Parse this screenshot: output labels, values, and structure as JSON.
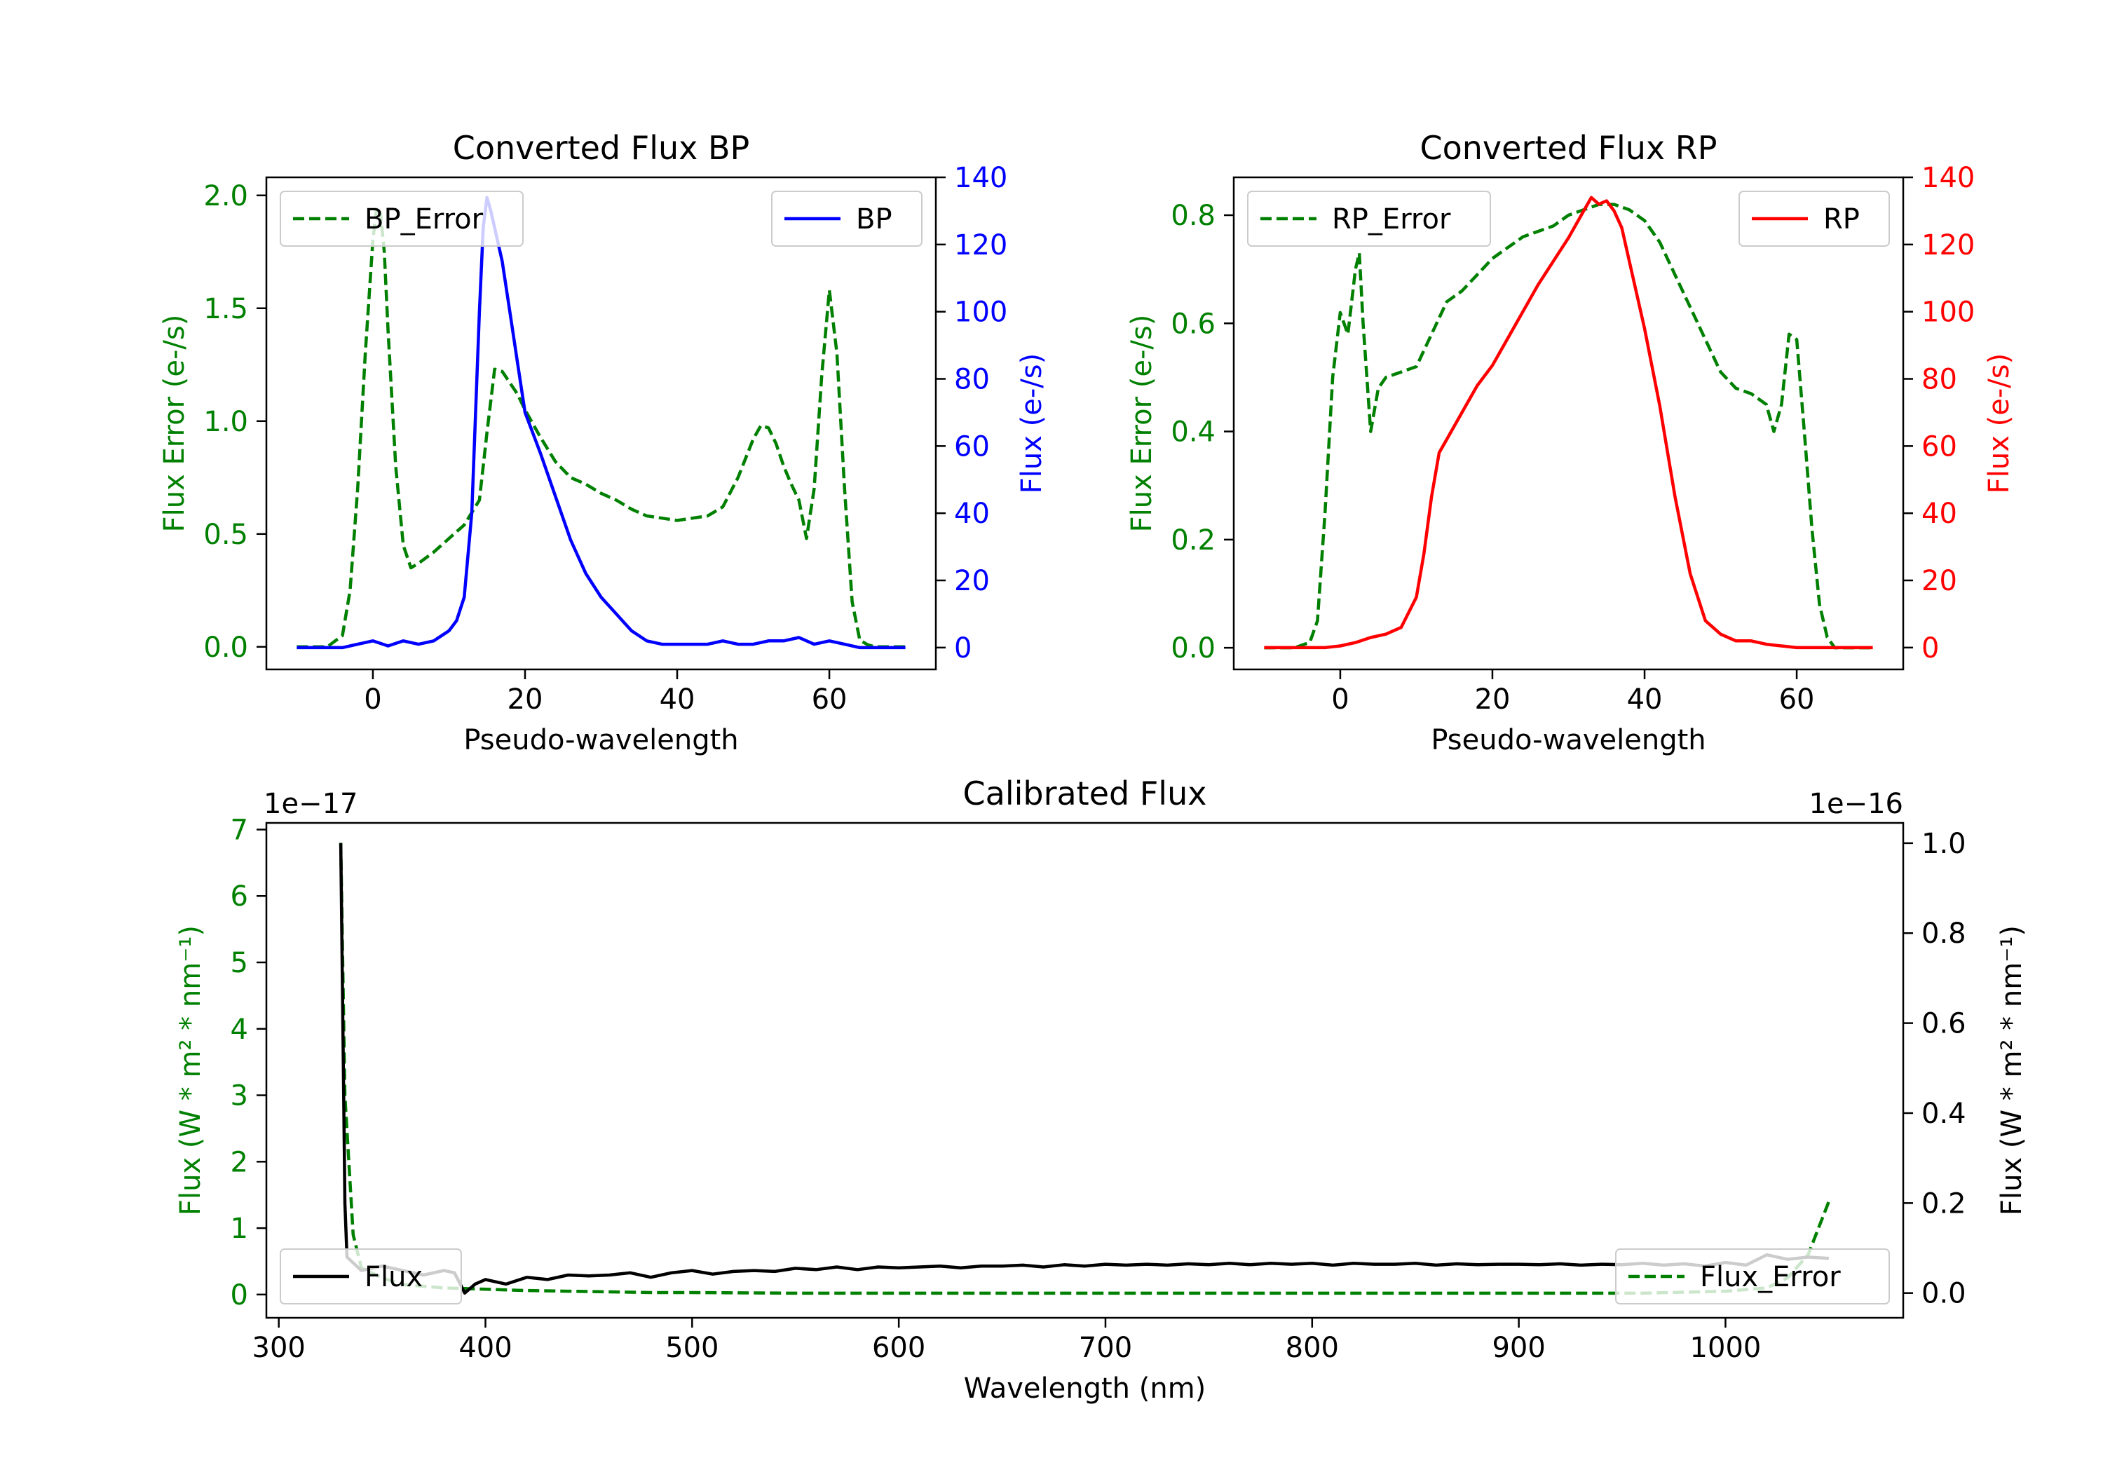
{
  "colors": {
    "green": "#008000",
    "blue": "#0000ff",
    "red": "#ff0000",
    "black": "#000000"
  },
  "chart_data": [
    {
      "id": "bp",
      "type": "line",
      "title": "Converted Flux BP",
      "xlabel": "Pseudo-wavelength",
      "ylabel_left": "Flux Error (e-/s)",
      "ylabel_right": "Flux (e-/s)",
      "xlim": [
        -14,
        74
      ],
      "ylim_left": [
        -0.1,
        2.08
      ],
      "ylim_right": [
        -6.5,
        140
      ],
      "xticks": [
        0,
        20,
        40,
        60
      ],
      "yticks_left": [
        0.0,
        0.5,
        1.0,
        1.5,
        2.0
      ],
      "ytick_labels_left": [
        "0.0",
        "0.5",
        "1.0",
        "1.5",
        "2.0"
      ],
      "yticks_right": [
        0,
        20,
        40,
        60,
        80,
        100,
        120,
        140
      ],
      "ytick_labels_right": [
        "0",
        "20",
        "40",
        "60",
        "80",
        "100",
        "120",
        "140"
      ],
      "series": [
        {
          "name": "BP_Error",
          "axis": "left",
          "color": "#008000",
          "dash": true,
          "legend": "upper left",
          "x": [
            -10,
            -6,
            -4,
            -3,
            -2,
            -1,
            0,
            0.5,
            1,
            1.5,
            2,
            3,
            4,
            5,
            6,
            8,
            10,
            12,
            14,
            15,
            16,
            17,
            18,
            19,
            20,
            22,
            24,
            26,
            28,
            30,
            32,
            34,
            36,
            38,
            40,
            42,
            44,
            46,
            48,
            50,
            51,
            52,
            53,
            54,
            55,
            56,
            57,
            58,
            59,
            60,
            61,
            62,
            63,
            64,
            65,
            66,
            68,
            70
          ],
          "y": [
            0,
            0,
            0.05,
            0.25,
            0.7,
            1.3,
            1.8,
            1.95,
            1.92,
            1.75,
            1.4,
            0.8,
            0.45,
            0.35,
            0.37,
            0.42,
            0.48,
            0.54,
            0.65,
            0.95,
            1.23,
            1.22,
            1.17,
            1.12,
            1.05,
            0.93,
            0.82,
            0.75,
            0.72,
            0.68,
            0.65,
            0.61,
            0.58,
            0.57,
            0.56,
            0.57,
            0.58,
            0.62,
            0.75,
            0.92,
            0.98,
            0.97,
            0.9,
            0.8,
            0.72,
            0.65,
            0.48,
            0.7,
            1.2,
            1.58,
            1.3,
            0.7,
            0.2,
            0.03,
            0.01,
            0,
            0,
            0
          ]
        },
        {
          "name": "BP",
          "axis": "right",
          "color": "#0000ff",
          "dash": false,
          "legend": "upper right",
          "x": [
            -10,
            -6,
            -4,
            -2,
            0,
            2,
            4,
            6,
            8,
            10,
            11,
            12,
            13,
            14,
            14.5,
            15,
            15.5,
            16,
            17,
            18,
            19,
            20,
            22,
            24,
            26,
            28,
            30,
            32,
            34,
            36,
            38,
            40,
            42,
            44,
            46,
            48,
            50,
            52,
            54,
            56,
            58,
            60,
            62,
            64,
            66,
            68,
            70
          ],
          "y": [
            0,
            0,
            0,
            1,
            2,
            0.5,
            2,
            1,
            2,
            5,
            8,
            15,
            40,
            100,
            125,
            134,
            130,
            125,
            115,
            100,
            85,
            70,
            58,
            45,
            32,
            22,
            15,
            10,
            5,
            2,
            1,
            1,
            1,
            1,
            2,
            1,
            1,
            2,
            2,
            3,
            1,
            2,
            1,
            0,
            0,
            0,
            0
          ]
        }
      ]
    },
    {
      "id": "rp",
      "type": "line",
      "title": "Converted Flux RP",
      "xlabel": "Pseudo-wavelength",
      "ylabel_left": "Flux Error (e-/s)",
      "ylabel_right": "Flux (e-/s)",
      "xlim": [
        -14,
        74
      ],
      "ylim_left": [
        -0.04,
        0.87
      ],
      "ylim_right": [
        -6.5,
        140
      ],
      "xticks": [
        0,
        20,
        40,
        60
      ],
      "yticks_left": [
        0.0,
        0.2,
        0.4,
        0.6,
        0.8
      ],
      "ytick_labels_left": [
        "0.0",
        "0.2",
        "0.4",
        "0.6",
        "0.8"
      ],
      "yticks_right": [
        0,
        20,
        40,
        60,
        80,
        100,
        120,
        140
      ],
      "ytick_labels_right": [
        "0",
        "20",
        "40",
        "60",
        "80",
        "100",
        "120",
        "140"
      ],
      "series": [
        {
          "name": "RP_Error",
          "axis": "left",
          "color": "#008000",
          "dash": true,
          "legend": "upper left",
          "x": [
            -10,
            -6,
            -4,
            -3,
            -2,
            -1,
            0,
            1,
            2,
            2.5,
            3,
            3.5,
            4,
            5,
            6,
            8,
            10,
            12,
            14,
            16,
            18,
            20,
            22,
            24,
            26,
            28,
            30,
            32,
            34,
            36,
            38,
            40,
            42,
            44,
            46,
            48,
            50,
            52,
            54,
            56,
            57,
            58,
            59,
            60,
            61,
            62,
            63,
            64,
            65,
            66,
            68,
            70
          ],
          "y": [
            0,
            0,
            0.01,
            0.05,
            0.25,
            0.5,
            0.62,
            0.58,
            0.7,
            0.73,
            0.6,
            0.5,
            0.4,
            0.48,
            0.5,
            0.51,
            0.52,
            0.58,
            0.64,
            0.66,
            0.69,
            0.72,
            0.74,
            0.76,
            0.77,
            0.78,
            0.8,
            0.81,
            0.82,
            0.82,
            0.81,
            0.79,
            0.75,
            0.69,
            0.63,
            0.57,
            0.51,
            0.48,
            0.47,
            0.45,
            0.4,
            0.45,
            0.58,
            0.57,
            0.4,
            0.22,
            0.08,
            0.02,
            0,
            0,
            0,
            0
          ]
        },
        {
          "name": "RP",
          "axis": "right",
          "color": "#ff0000",
          "dash": false,
          "legend": "upper right",
          "x": [
            -10,
            -6,
            -4,
            -2,
            0,
            2,
            4,
            6,
            8,
            10,
            11,
            12,
            13,
            14,
            16,
            18,
            20,
            22,
            24,
            26,
            28,
            30,
            32,
            33,
            34,
            35,
            36,
            37,
            38,
            40,
            42,
            44,
            46,
            48,
            50,
            52,
            54,
            56,
            58,
            60,
            62,
            64,
            66,
            68,
            70
          ],
          "y": [
            0,
            0,
            0,
            0,
            0.5,
            1.5,
            3,
            4,
            6,
            15,
            28,
            45,
            58,
            62,
            70,
            78,
            84,
            92,
            100,
            108,
            115,
            122,
            130,
            134,
            132,
            133,
            130,
            125,
            115,
            95,
            72,
            45,
            22,
            8,
            4,
            2,
            2,
            1,
            0.5,
            0,
            0,
            0,
            0,
            0,
            0
          ]
        }
      ]
    },
    {
      "id": "cal",
      "type": "line",
      "title": "Calibrated Flux",
      "xlabel": "Wavelength (nm)",
      "ylabel_left": "Flux (W * m² * nm⁻¹)",
      "ylabel_right": "Flux (W * m² * nm⁻¹)",
      "offset_left": "1e−17",
      "offset_right": "1e−16",
      "xlim": [
        294,
        1086
      ],
      "ylim_left": [
        -0.35,
        7.1
      ],
      "ylim_right": [
        -0.055,
        1.045
      ],
      "xticks": [
        300,
        400,
        500,
        600,
        700,
        800,
        900,
        1000
      ],
      "yticks_left": [
        0,
        1,
        2,
        3,
        4,
        5,
        6,
        7
      ],
      "ytick_labels_left": [
        "0",
        "1",
        "2",
        "3",
        "4",
        "5",
        "6",
        "7"
      ],
      "yticks_right": [
        0.0,
        0.2,
        0.4,
        0.6,
        0.8,
        1.0
      ],
      "ytick_labels_right": [
        "0.0",
        "0.2",
        "0.4",
        "0.6",
        "0.8",
        "1.0"
      ],
      "series": [
        {
          "name": "Flux_Error",
          "axis": "left",
          "color": "#008000",
          "dash": true,
          "legend": "lower right",
          "x": [
            330,
            332,
            336,
            340,
            350,
            360,
            380,
            390,
            400,
            420,
            440,
            460,
            480,
            500,
            550,
            600,
            650,
            700,
            800,
            900,
            960,
            1000,
            1020,
            1030,
            1040,
            1045,
            1050
          ],
          "y": [
            6.8,
            3.0,
            0.9,
            0.4,
            0.25,
            0.15,
            0.1,
            0.09,
            0.08,
            0.06,
            0.05,
            0.04,
            0.03,
            0.03,
            0.02,
            0.02,
            0.02,
            0.02,
            0.02,
            0.02,
            0.02,
            0.05,
            0.1,
            0.25,
            0.6,
            1.0,
            1.4
          ]
        },
        {
          "name": "Flux",
          "axis": "right",
          "color": "#000000",
          "dash": false,
          "legend": "lower left",
          "x": [
            330,
            331,
            332,
            333,
            340,
            350,
            360,
            370,
            380,
            385,
            390,
            395,
            400,
            410,
            420,
            430,
            440,
            450,
            460,
            470,
            480,
            490,
            500,
            510,
            520,
            530,
            540,
            550,
            560,
            570,
            580,
            590,
            600,
            610,
            620,
            630,
            640,
            650,
            660,
            670,
            680,
            690,
            700,
            710,
            720,
            730,
            740,
            750,
            760,
            770,
            780,
            790,
            800,
            810,
            820,
            830,
            840,
            850,
            860,
            870,
            880,
            890,
            900,
            910,
            920,
            930,
            940,
            950,
            960,
            970,
            980,
            990,
            1000,
            1010,
            1020,
            1030,
            1040,
            1050
          ],
          "y": [
            1.0,
            0.6,
            0.2,
            0.08,
            0.05,
            0.06,
            0.05,
            0.04,
            0.05,
            0.045,
            0.0,
            0.02,
            0.03,
            0.02,
            0.035,
            0.03,
            0.04,
            0.038,
            0.04,
            0.045,
            0.035,
            0.045,
            0.05,
            0.042,
            0.048,
            0.05,
            0.048,
            0.055,
            0.052,
            0.058,
            0.052,
            0.058,
            0.056,
            0.058,
            0.06,
            0.056,
            0.06,
            0.06,
            0.062,
            0.058,
            0.063,
            0.06,
            0.064,
            0.062,
            0.064,
            0.062,
            0.065,
            0.063,
            0.066,
            0.063,
            0.066,
            0.064,
            0.066,
            0.062,
            0.066,
            0.064,
            0.064,
            0.066,
            0.062,
            0.065,
            0.063,
            0.064,
            0.064,
            0.063,
            0.065,
            0.062,
            0.064,
            0.063,
            0.066,
            0.062,
            0.065,
            0.06,
            0.068,
            0.062,
            0.085,
            0.075,
            0.08,
            0.077
          ]
        }
      ]
    }
  ]
}
